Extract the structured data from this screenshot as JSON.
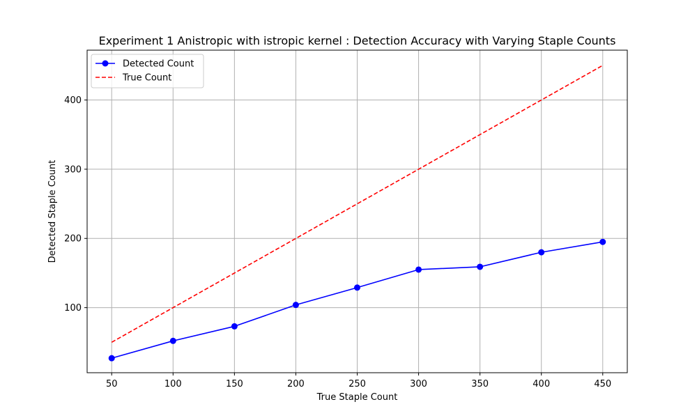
{
  "chart_data": {
    "type": "line",
    "title": "Experiment 1 Anistropic with istropic kernel : Detection Accuracy with Varying Staple Counts",
    "xlabel": "True Staple Count",
    "ylabel": "Detected Staple Count",
    "x": [
      50,
      100,
      150,
      200,
      250,
      300,
      350,
      400,
      450
    ],
    "xlim": [
      30,
      470
    ],
    "ylim": [
      6,
      472
    ],
    "xticks": [
      50,
      100,
      150,
      200,
      250,
      300,
      350,
      400,
      450
    ],
    "yticks": [
      100,
      200,
      300,
      400
    ],
    "grid": true,
    "legend_position": "top-left",
    "series": [
      {
        "name": "Detected Count",
        "values": [
          27,
          52,
          73,
          104,
          129,
          155,
          159,
          180,
          195
        ],
        "color": "#0000ff",
        "style": "solid",
        "marker": "circle"
      },
      {
        "name": "True Count",
        "values": [
          50,
          100,
          150,
          200,
          250,
          300,
          350,
          400,
          450
        ],
        "color": "#ff0000",
        "style": "dashed",
        "marker": "none"
      }
    ]
  }
}
